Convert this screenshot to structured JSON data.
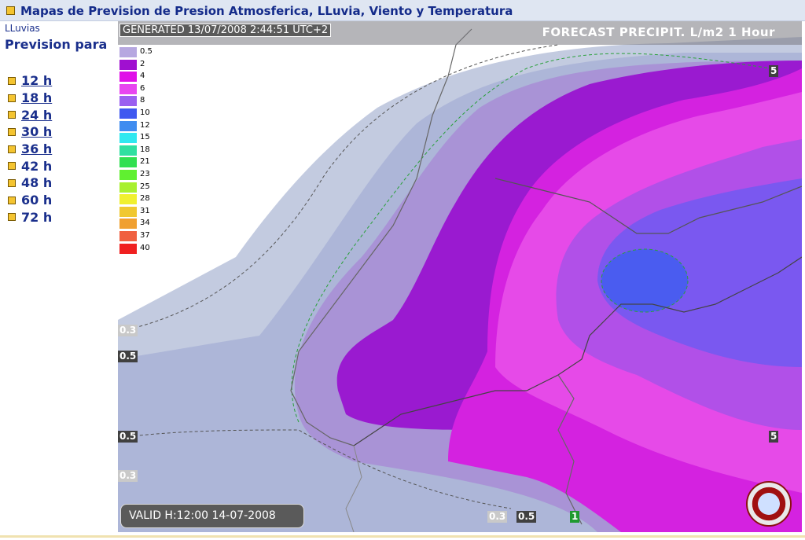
{
  "header": {
    "title": "Mapas de Prevision de Presion Atmosferica, LLuvia, Viento y Temperatura"
  },
  "sidebar": {
    "category": "LLuvias",
    "heading": "Prevision para",
    "hours": [
      {
        "label": "12 h",
        "linked": true
      },
      {
        "label": "18 h",
        "linked": true
      },
      {
        "label": "24 h",
        "linked": true
      },
      {
        "label": "30 h",
        "linked": true
      },
      {
        "label": "36 h",
        "linked": true
      },
      {
        "label": "42 h",
        "linked": false
      },
      {
        "label": "48 h",
        "linked": false
      },
      {
        "label": "60 h",
        "linked": false
      },
      {
        "label": "72 h",
        "linked": false
      }
    ]
  },
  "map": {
    "generated": "GENERATED 13/07/2008 2:44:51 UTC+2",
    "forecast_title": "FORECAST  PRECIPIT. L/m2  1 Hour",
    "valid": "VALID H:12:00  14-07-2008",
    "legend": [
      {
        "value": "0.5",
        "color": "#b6a7e0"
      },
      {
        "value": "2",
        "color": "#a010d0"
      },
      {
        "value": "4",
        "color": "#e010e8"
      },
      {
        "value": "6",
        "color": "#e846f0"
      },
      {
        "value": "8",
        "color": "#9b60f0"
      },
      {
        "value": "10",
        "color": "#3f58f0"
      },
      {
        "value": "12",
        "color": "#3f8cf0"
      },
      {
        "value": "15",
        "color": "#30e8f0"
      },
      {
        "value": "18",
        "color": "#30e0a0"
      },
      {
        "value": "21",
        "color": "#30e050"
      },
      {
        "value": "23",
        "color": "#60f030"
      },
      {
        "value": "25",
        "color": "#a8f030"
      },
      {
        "value": "28",
        "color": "#f0f030"
      },
      {
        "value": "31",
        "color": "#f0c830"
      },
      {
        "value": "34",
        "color": "#f0a030"
      },
      {
        "value": "37",
        "color": "#f06040"
      },
      {
        "value": "40",
        "color": "#f02020"
      }
    ],
    "contour_labels": [
      "0.3",
      "0.5",
      "0.5",
      "0.3",
      "0.3",
      "0.5",
      "1",
      "5",
      "5"
    ]
  }
}
